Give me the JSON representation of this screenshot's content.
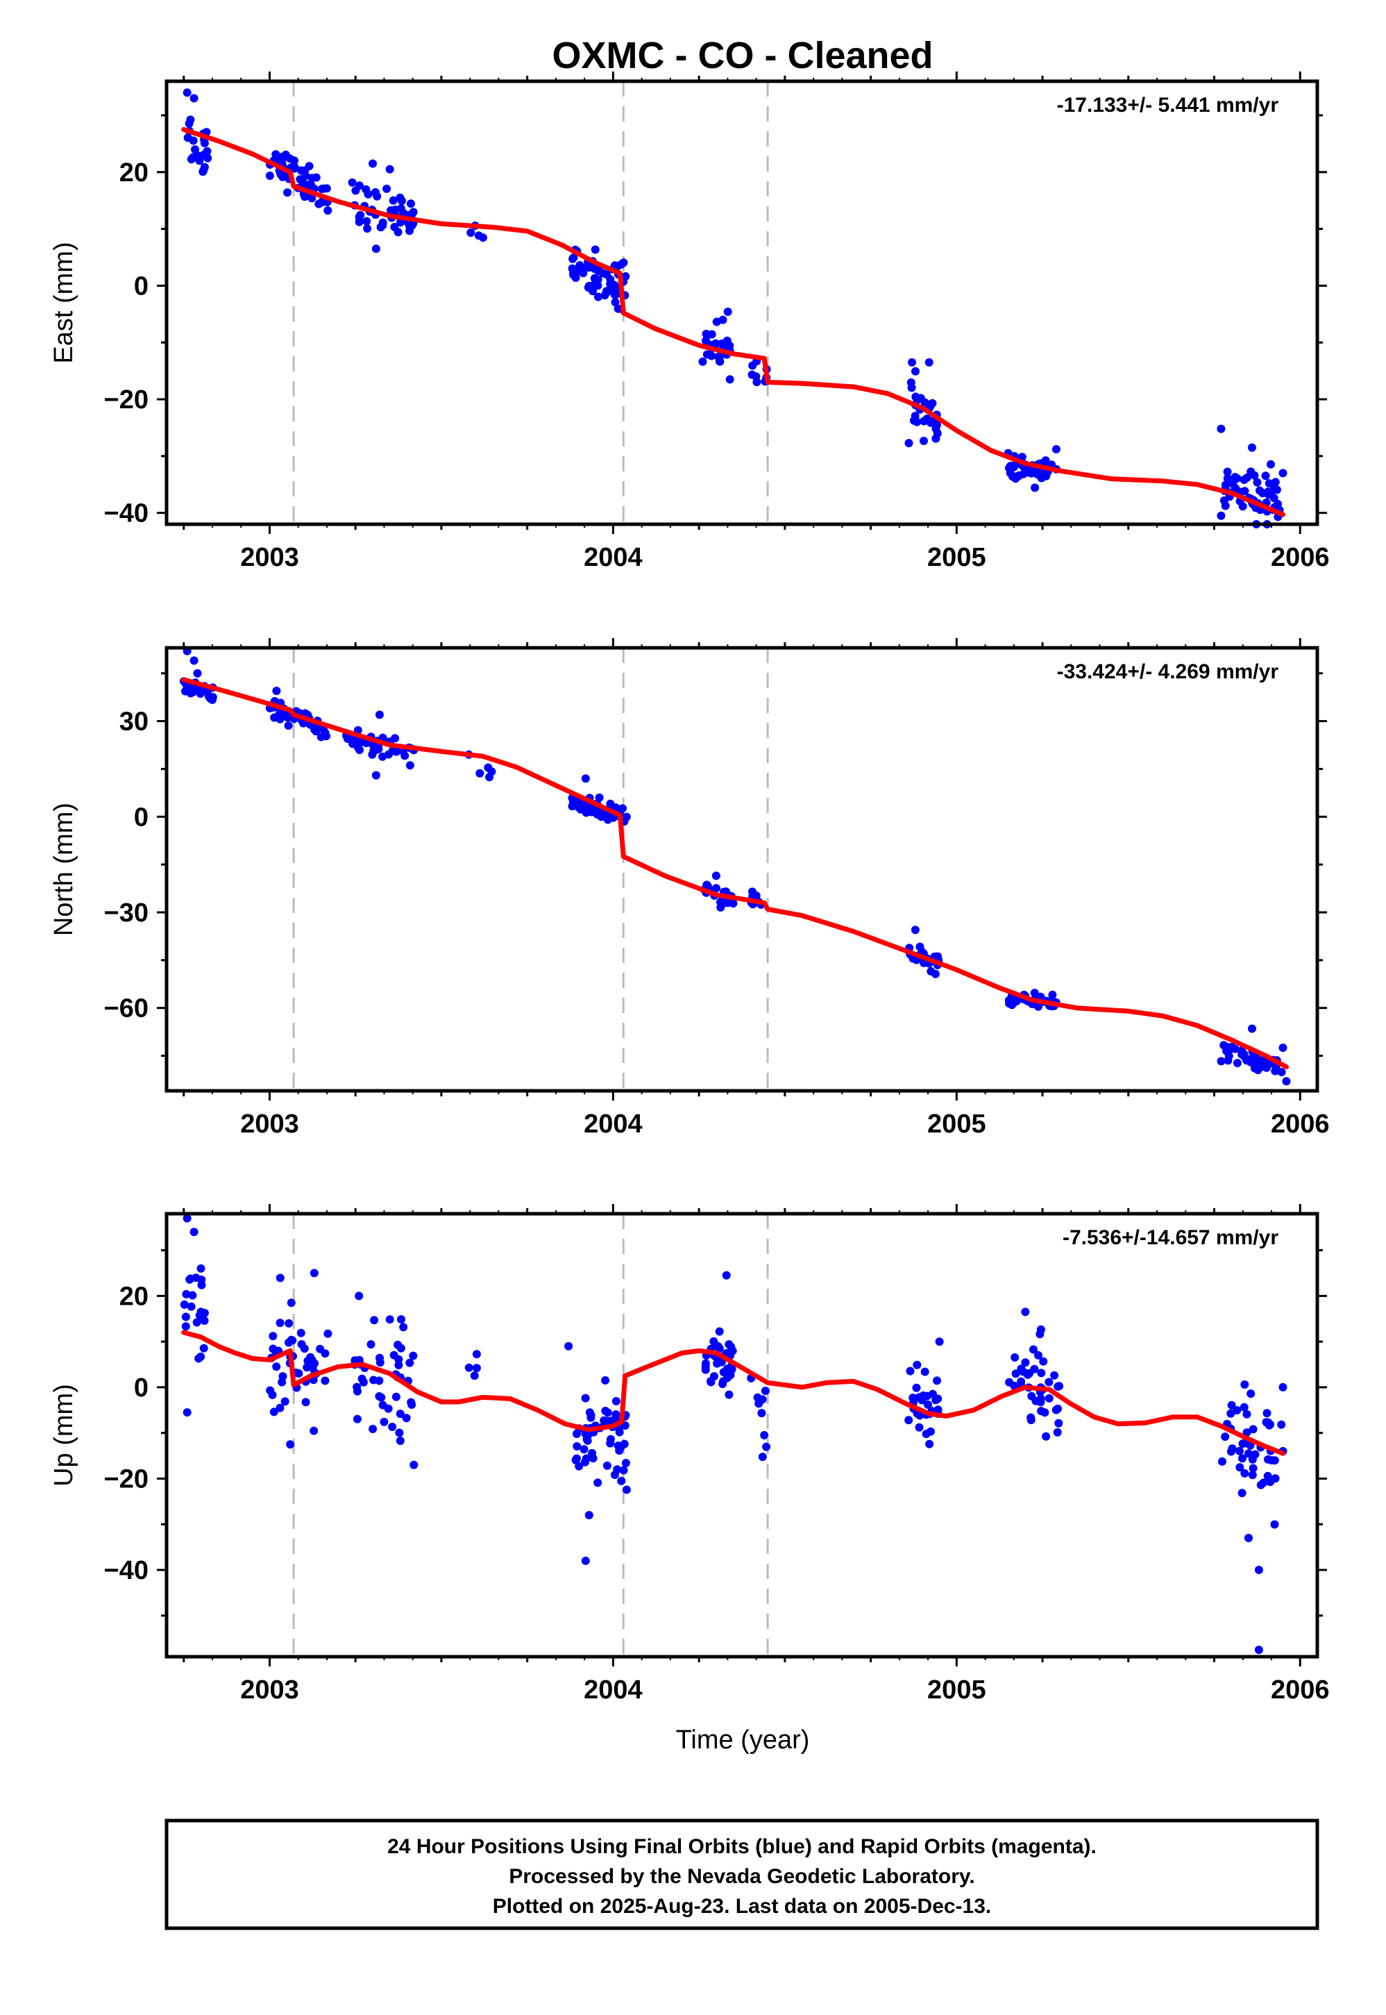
{
  "chart_data": {
    "type": "scatter",
    "title": "OXMC  - CO - Cleaned",
    "xlabel": "Time (year)",
    "xlim": [
      2002.7,
      2006.05
    ],
    "x_ticks": [
      2003,
      2004,
      2005,
      2006
    ],
    "x_tick_labels": [
      "2003",
      "2004",
      "2005",
      "2006"
    ],
    "vertical_dashed_lines": [
      2003.07,
      2004.03,
      2004.45
    ],
    "colors": {
      "points": "#0000ff",
      "model": "#ff0000",
      "dashed": "#bbbbbb"
    },
    "panels": [
      {
        "id": "east",
        "ylabel": "East (mm)",
        "rate": "-17.133+/- 5.441 mm/yr",
        "ylim": [
          -42,
          36
        ],
        "y_ticks": [
          20,
          0,
          -20,
          -40
        ],
        "y_tick_labels": [
          "20",
          "0",
          "−20",
          "−40"
        ],
        "model": [
          [
            2002.75,
            27.5
          ],
          [
            2002.85,
            25.5
          ],
          [
            2002.95,
            23.2
          ],
          [
            2003.06,
            20
          ],
          [
            2003.07,
            17.5
          ],
          [
            2003.2,
            14.8
          ],
          [
            2003.35,
            12.3
          ],
          [
            2003.5,
            10.9
          ],
          [
            2003.65,
            10.3
          ],
          [
            2003.75,
            9.6
          ],
          [
            2003.85,
            7.2
          ],
          [
            2003.95,
            4
          ],
          [
            2004.02,
            2.2
          ],
          [
            2004.03,
            -4.8
          ],
          [
            2004.12,
            -7.5
          ],
          [
            2004.25,
            -10.5
          ],
          [
            2004.35,
            -12
          ],
          [
            2004.44,
            -12.8
          ],
          [
            2004.45,
            -17
          ],
          [
            2004.55,
            -17.2
          ],
          [
            2004.7,
            -17.8
          ],
          [
            2004.8,
            -19
          ],
          [
            2004.9,
            -21.5
          ],
          [
            2005.0,
            -25.5
          ],
          [
            2005.1,
            -29
          ],
          [
            2005.2,
            -31.3
          ],
          [
            2005.3,
            -32.6
          ],
          [
            2005.45,
            -34
          ],
          [
            2005.6,
            -34.4
          ],
          [
            2005.7,
            -35
          ],
          [
            2005.8,
            -36.5
          ],
          [
            2005.9,
            -39
          ],
          [
            2005.95,
            -40.3
          ]
        ],
        "clusters": [
          {
            "x0": 2002.75,
            "x1": 2002.82,
            "n": 20,
            "y0": 27,
            "y1": 23.5,
            "s": 2.6
          },
          {
            "x0": 2003.0,
            "x1": 2003.15,
            "n": 45,
            "y0": 22,
            "y1": 17,
            "s": 1.6
          },
          {
            "x0": 2003.14,
            "x1": 2003.17,
            "n": 8,
            "y0": 16,
            "y1": 15.5,
            "s": 1.0
          },
          {
            "x0": 2003.24,
            "x1": 2003.42,
            "n": 45,
            "y0": 13.5,
            "y1": 12.5,
            "s": 2.2
          },
          {
            "x0": 2003.58,
            "x1": 2003.65,
            "n": 4,
            "y0": 9.5,
            "y1": 8.5,
            "s": 0.8
          },
          {
            "x0": 2003.88,
            "x1": 2004.04,
            "n": 60,
            "y0": 3.5,
            "y1": 0,
            "s": 2.0
          },
          {
            "x0": 2004.26,
            "x1": 2004.34,
            "n": 30,
            "y0": -10,
            "y1": -11,
            "s": 2.2
          },
          {
            "x0": 2004.4,
            "x1": 2004.45,
            "n": 8,
            "y0": -14,
            "y1": -15,
            "s": 1.5
          },
          {
            "x0": 2004.86,
            "x1": 2004.95,
            "n": 28,
            "y0": -20,
            "y1": -24,
            "s": 2.2
          },
          {
            "x0": 2005.15,
            "x1": 2005.3,
            "n": 45,
            "y0": -32.5,
            "y1": -33,
            "s": 1.1
          },
          {
            "x0": 2005.77,
            "x1": 2005.94,
            "n": 50,
            "y0": -35,
            "y1": -38,
            "s": 2.2
          }
        ],
        "extra_points": [
          [
            2002.76,
            34
          ],
          [
            2002.78,
            33
          ],
          [
            2003.3,
            21.5
          ],
          [
            2003.35,
            20.5
          ],
          [
            2003.31,
            6.5
          ],
          [
            2004.34,
            -16.5
          ],
          [
            2004.87,
            -13.5
          ],
          [
            2004.92,
            -13.5
          ],
          [
            2005.29,
            -28.8
          ],
          [
            2005.77,
            -25.2
          ],
          [
            2005.86,
            -28.5
          ],
          [
            2005.95,
            -33
          ],
          [
            2005.77,
            -40.5
          ],
          [
            2005.94,
            -39.5
          ]
        ]
      },
      {
        "id": "north",
        "ylabel": "North (mm)",
        "rate": "-33.424+/- 4.269 mm/yr",
        "ylim": [
          -86,
          53
        ],
        "y_ticks": [
          30,
          0,
          -30,
          -60
        ],
        "y_tick_labels": [
          "30",
          "0",
          "−30",
          "−60"
        ],
        "model": [
          [
            2002.75,
            43
          ],
          [
            2002.9,
            38.5
          ],
          [
            2003.06,
            33.5
          ],
          [
            2003.07,
            32
          ],
          [
            2003.2,
            27.5
          ],
          [
            2003.35,
            22.5
          ],
          [
            2003.5,
            20.5
          ],
          [
            2003.62,
            19
          ],
          [
            2003.72,
            15.5
          ],
          [
            2003.82,
            10.5
          ],
          [
            2003.92,
            5.5
          ],
          [
            2004.02,
            0.5
          ],
          [
            2004.03,
            -12.5
          ],
          [
            2004.15,
            -18.5
          ],
          [
            2004.3,
            -24.5
          ],
          [
            2004.44,
            -27
          ],
          [
            2004.45,
            -29
          ],
          [
            2004.55,
            -31
          ],
          [
            2004.7,
            -36
          ],
          [
            2004.85,
            -42
          ],
          [
            2005.0,
            -48
          ],
          [
            2005.12,
            -53.5
          ],
          [
            2005.22,
            -57.5
          ],
          [
            2005.35,
            -60
          ],
          [
            2005.5,
            -61
          ],
          [
            2005.6,
            -62.5
          ],
          [
            2005.7,
            -65.5
          ],
          [
            2005.8,
            -70
          ],
          [
            2005.9,
            -75
          ],
          [
            2005.96,
            -78.5
          ]
        ],
        "clusters": [
          {
            "x0": 2002.75,
            "x1": 2002.84,
            "n": 25,
            "y0": 41,
            "y1": 38,
            "s": 1.5
          },
          {
            "x0": 2003.0,
            "x1": 2003.17,
            "n": 45,
            "y0": 34,
            "y1": 27,
            "s": 1.3
          },
          {
            "x0": 2003.22,
            "x1": 2003.42,
            "n": 45,
            "y0": 24,
            "y1": 20,
            "s": 1.6
          },
          {
            "x0": 2003.58,
            "x1": 2003.66,
            "n": 4,
            "y0": 16,
            "y1": 14,
            "s": 1.5
          },
          {
            "x0": 2003.88,
            "x1": 2004.04,
            "n": 55,
            "y0": 4,
            "y1": 0,
            "s": 1.5
          },
          {
            "x0": 2004.26,
            "x1": 2004.35,
            "n": 30,
            "y0": -23,
            "y1": -26,
            "s": 1.3
          },
          {
            "x0": 2004.4,
            "x1": 2004.45,
            "n": 8,
            "y0": -26.5,
            "y1": -27.5,
            "s": 1.0
          },
          {
            "x0": 2004.86,
            "x1": 2004.95,
            "n": 30,
            "y0": -43,
            "y1": -46,
            "s": 1.4
          },
          {
            "x0": 2005.15,
            "x1": 2005.3,
            "n": 40,
            "y0": -57,
            "y1": -58.5,
            "s": 1.0
          },
          {
            "x0": 2005.77,
            "x1": 2005.95,
            "n": 45,
            "y0": -74,
            "y1": -78,
            "s": 1.5
          }
        ],
        "extra_points": [
          [
            2002.76,
            52
          ],
          [
            2002.78,
            49
          ],
          [
            2002.79,
            45
          ],
          [
            2003.02,
            39.5
          ],
          [
            2003.32,
            32
          ],
          [
            2003.31,
            13
          ],
          [
            2003.58,
            19.5
          ],
          [
            2003.92,
            12
          ],
          [
            2003.96,
            6
          ],
          [
            2004.3,
            -18.5
          ],
          [
            2004.88,
            -35.5
          ],
          [
            2005.86,
            -66.5
          ],
          [
            2005.95,
            -72.5
          ],
          [
            2005.96,
            -83
          ]
        ]
      },
      {
        "id": "up",
        "ylabel": "Up (mm)",
        "rate": "-7.536+/-14.657 mm/yr",
        "ylim": [
          -59,
          38
        ],
        "y_ticks": [
          20,
          0,
          -20,
          -40
        ],
        "y_tick_labels": [
          "20",
          "0",
          "−20",
          "−40"
        ],
        "model": [
          [
            2002.75,
            12
          ],
          [
            2002.8,
            11
          ],
          [
            2002.85,
            9
          ],
          [
            2002.9,
            7.5
          ],
          [
            2002.95,
            6.3
          ],
          [
            2003.0,
            6
          ],
          [
            2003.06,
            8
          ],
          [
            2003.07,
            0.5
          ],
          [
            2003.12,
            2.5
          ],
          [
            2003.2,
            4.5
          ],
          [
            2003.27,
            5
          ],
          [
            2003.35,
            3
          ],
          [
            2003.43,
            -1
          ],
          [
            2003.5,
            -3.2
          ],
          [
            2003.55,
            -3.2
          ],
          [
            2003.62,
            -2.2
          ],
          [
            2003.7,
            -2.5
          ],
          [
            2003.78,
            -5
          ],
          [
            2003.86,
            -8
          ],
          [
            2003.93,
            -9.3
          ],
          [
            2004.0,
            -8.5
          ],
          [
            2004.025,
            -7.5
          ],
          [
            2004.035,
            2.5
          ],
          [
            2004.1,
            4.5
          ],
          [
            2004.2,
            7.5
          ],
          [
            2004.25,
            8
          ],
          [
            2004.3,
            7.5
          ],
          [
            2004.37,
            4.5
          ],
          [
            2004.45,
            1
          ],
          [
            2004.55,
            0
          ],
          [
            2004.62,
            1
          ],
          [
            2004.7,
            1.3
          ],
          [
            2004.77,
            -0.5
          ],
          [
            2004.85,
            -3.5
          ],
          [
            2004.92,
            -5.8
          ],
          [
            2004.97,
            -6.3
          ],
          [
            2005.05,
            -5
          ],
          [
            2005.13,
            -2
          ],
          [
            2005.2,
            0
          ],
          [
            2005.27,
            -0.5
          ],
          [
            2005.33,
            -3.5
          ],
          [
            2005.4,
            -6.5
          ],
          [
            2005.47,
            -8
          ],
          [
            2005.55,
            -7.8
          ],
          [
            2005.63,
            -6.5
          ],
          [
            2005.7,
            -6.5
          ],
          [
            2005.77,
            -8.5
          ],
          [
            2005.84,
            -11
          ],
          [
            2005.9,
            -13
          ],
          [
            2005.95,
            -14.5
          ]
        ],
        "clusters": [
          {
            "x0": 2002.75,
            "x1": 2002.82,
            "n": 20,
            "y0": 18,
            "y1": 12,
            "s": 6.0
          },
          {
            "x0": 2003.0,
            "x1": 2003.17,
            "n": 45,
            "y0": 5,
            "y1": 5,
            "s": 6.0
          },
          {
            "x0": 2003.24,
            "x1": 2003.42,
            "n": 45,
            "y0": 4,
            "y1": 0,
            "s": 6.0
          },
          {
            "x0": 2003.58,
            "x1": 2003.65,
            "n": 4,
            "y0": 3,
            "y1": 2,
            "s": 3.0
          },
          {
            "x0": 2003.88,
            "x1": 2004.04,
            "n": 55,
            "y0": -10,
            "y1": -12,
            "s": 5.0
          },
          {
            "x0": 2004.26,
            "x1": 2004.35,
            "n": 35,
            "y0": 7,
            "y1": 5,
            "s": 4.0
          },
          {
            "x0": 2004.4,
            "x1": 2004.45,
            "n": 8,
            "y0": -1,
            "y1": -5,
            "s": 4.0
          },
          {
            "x0": 2004.86,
            "x1": 2004.95,
            "n": 30,
            "y0": -3,
            "y1": -5,
            "s": 4.5
          },
          {
            "x0": 2005.15,
            "x1": 2005.3,
            "n": 40,
            "y0": 2,
            "y1": 0,
            "s": 5.0
          },
          {
            "x0": 2005.77,
            "x1": 2005.95,
            "n": 45,
            "y0": -10,
            "y1": -15,
            "s": 6.0
          }
        ],
        "extra_points": [
          [
            2002.76,
            37
          ],
          [
            2002.78,
            34
          ],
          [
            2002.8,
            26
          ],
          [
            2002.76,
            -5.5
          ],
          [
            2003.13,
            25
          ],
          [
            2003.26,
            20
          ],
          [
            2003.06,
            -12.5
          ],
          [
            2003.42,
            -17
          ],
          [
            2003.92,
            -38
          ],
          [
            2003.93,
            -28
          ],
          [
            2003.87,
            9
          ],
          [
            2004.33,
            24.5
          ],
          [
            2004.44,
            -10.5
          ],
          [
            2004.95,
            10
          ],
          [
            2005.2,
            16.5
          ],
          [
            2005.85,
            -33
          ],
          [
            2005.88,
            -40
          ],
          [
            2005.88,
            -57.5
          ],
          [
            2005.95,
            0
          ],
          [
            2005.95,
            -14
          ]
        ]
      }
    ]
  },
  "footer": {
    "line1": "24 Hour Positions Using Final Orbits (blue) and Rapid Orbits (magenta).",
    "line2": "Processed by the Nevada Geodetic Laboratory.",
    "line3": "Plotted on 2025-Aug-23. Last data on 2005-Dec-13."
  }
}
